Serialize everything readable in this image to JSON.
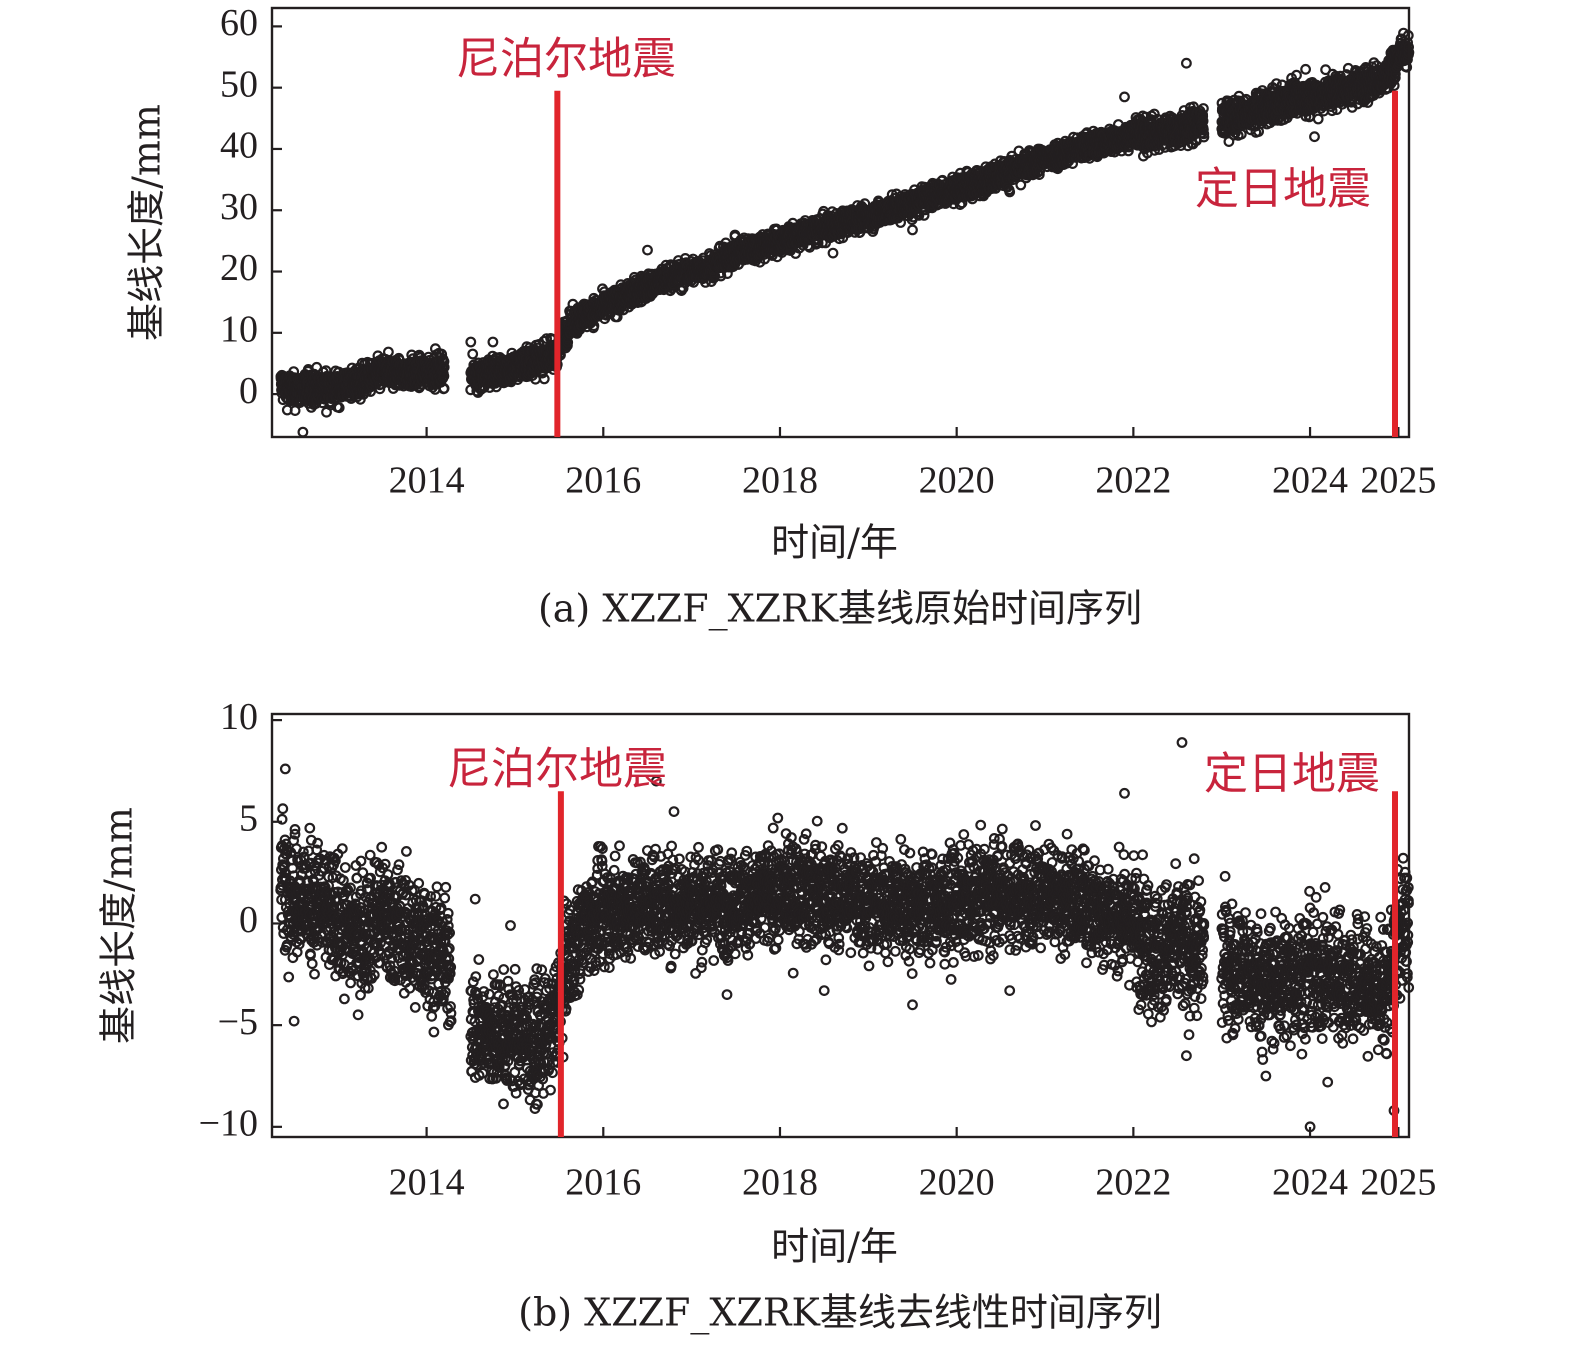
{
  "figure": {
    "background": "#ffffff",
    "ink_color": "#231f20",
    "marker_color": "#231f20",
    "quake_line_color": "#e1252b",
    "quake_label_color": "#c8243c"
  },
  "chart_data": [
    {
      "id": "a",
      "type": "scatter",
      "caption": "(a) XZZF_XZRK基线原始时间序列",
      "xlabel": "时间/年",
      "ylabel": "基线长度/mm",
      "xlim": [
        2012.25,
        2025.12
      ],
      "ylim": [
        -7,
        63
      ],
      "xticks": [
        2014,
        2016,
        2018,
        2020,
        2022,
        2024,
        2025
      ],
      "xtick_labels": [
        "2014",
        "2016",
        "2018",
        "2020",
        "2022",
        "2024",
        "2025"
      ],
      "yticks": [
        0,
        10,
        20,
        30,
        40,
        50,
        60
      ],
      "ytick_labels": [
        "0",
        "10",
        "20",
        "30",
        "40",
        "50",
        "60"
      ],
      "marker": "open-circle",
      "grid": false,
      "events": [
        {
          "label": "尼泊尔地震",
          "x": 2015.48,
          "y_top": 49.5
        },
        {
          "label": "定日地震",
          "x": 2025.02,
          "y_top": 49.5
        }
      ],
      "series": [
        {
          "values": [
            [
              2012.35,
              1.5
            ],
            [
              2012.5,
              0.5
            ],
            [
              2012.75,
              1.0
            ],
            [
              2013.0,
              1.0
            ],
            [
              2013.25,
              2.0
            ],
            [
              2013.5,
              3.5
            ],
            [
              2013.75,
              3.5
            ],
            [
              2014.0,
              3.5
            ],
            [
              2014.2,
              4.0
            ],
            [
              2014.5,
              3.0
            ],
            [
              2014.75,
              3.5
            ],
            [
              2015.0,
              4.5
            ],
            [
              2015.25,
              5.5
            ],
            [
              2015.45,
              6.5
            ],
            [
              2015.6,
              11.0
            ],
            [
              2015.8,
              13.0
            ],
            [
              2016.0,
              14.0
            ],
            [
              2016.25,
              16.0
            ],
            [
              2016.5,
              17.5
            ],
            [
              2016.75,
              19.0
            ],
            [
              2017.0,
              20.0
            ],
            [
              2017.25,
              21.0
            ],
            [
              2017.5,
              23.0
            ],
            [
              2017.75,
              24.0
            ],
            [
              2018.0,
              25.0
            ],
            [
              2018.25,
              26.0
            ],
            [
              2018.5,
              27.0
            ],
            [
              2018.75,
              28.0
            ],
            [
              2019.0,
              29.0
            ],
            [
              2019.25,
              30.0
            ],
            [
              2019.5,
              31.0
            ],
            [
              2019.75,
              32.5
            ],
            [
              2020.0,
              33.5
            ],
            [
              2020.25,
              34.5
            ],
            [
              2020.5,
              36.0
            ],
            [
              2020.75,
              37.0
            ],
            [
              2021.0,
              38.5
            ],
            [
              2021.25,
              39.5
            ],
            [
              2021.5,
              40.5
            ],
            [
              2021.75,
              41.5
            ],
            [
              2022.0,
              42.5
            ],
            [
              2022.25,
              42.5
            ],
            [
              2022.5,
              43.0
            ],
            [
              2022.7,
              44.0
            ],
            [
              2023.1,
              45.0
            ],
            [
              2023.4,
              46.0
            ],
            [
              2023.7,
              48.0
            ],
            [
              2024.0,
              48.5
            ],
            [
              2024.3,
              49.5
            ],
            [
              2024.6,
              50.5
            ],
            [
              2024.85,
              51.5
            ],
            [
              2025.05,
              56.0
            ]
          ],
          "spread": [
            [
              2012.35,
              2013.0,
              2.2
            ],
            [
              2013.0,
              2014.2,
              2.0
            ],
            [
              2014.5,
              2015.6,
              2.0
            ],
            [
              2015.6,
              2022.0,
              1.7
            ],
            [
              2022.0,
              2022.8,
              2.2
            ],
            [
              2023.0,
              2025.12,
              2.3
            ]
          ],
          "gaps": [
            [
              2014.28,
              2014.48
            ],
            [
              2022.82,
              2022.98
            ]
          ],
          "outliers": [
            [
              2012.6,
              -6.2
            ],
            [
              2014.5,
              8.5
            ],
            [
              2014.75,
              8.5
            ],
            [
              2016.5,
              23.5
            ],
            [
              2018.6,
              23.0
            ],
            [
              2019.5,
              26.8
            ],
            [
              2020.6,
              33.0
            ],
            [
              2021.9,
              48.5
            ],
            [
              2022.6,
              54.0
            ],
            [
              2024.05,
              42.0
            ],
            [
              2023.95,
              53.0
            ]
          ]
        }
      ]
    },
    {
      "id": "b",
      "type": "scatter",
      "caption": "(b) XZZF_XZRK基线去线性时间序列",
      "xlabel": "时间/年",
      "ylabel": "基线长度/mm",
      "xlim": [
        2012.25,
        2025.12
      ],
      "ylim": [
        -10.5,
        10.3
      ],
      "xticks": [
        2014,
        2016,
        2018,
        2020,
        2022,
        2024,
        2025
      ],
      "xtick_labels": [
        "2014",
        "2016",
        "2018",
        "2020",
        "2022",
        "2024",
        "2025"
      ],
      "yticks": [
        -10,
        -5,
        0,
        5,
        10
      ],
      "ytick_labels": [
        "−10",
        "−5",
        "0",
        "5",
        "10"
      ],
      "marker": "open-circle",
      "grid": false,
      "events": [
        {
          "label": "尼泊尔地震",
          "x": 2015.52,
          "y_top": 6.5
        },
        {
          "label": "定日地震",
          "x": 2025.02,
          "y_top": 6.5
        }
      ],
      "series": [
        {
          "values": [
            [
              2012.35,
              2.5
            ],
            [
              2012.5,
              1.5
            ],
            [
              2012.75,
              1.0
            ],
            [
              2013.0,
              0.0
            ],
            [
              2013.25,
              -0.5
            ],
            [
              2013.5,
              0.5
            ],
            [
              2013.75,
              -0.5
            ],
            [
              2014.0,
              -1.0
            ],
            [
              2014.25,
              -2.0
            ],
            [
              2014.5,
              -5.0
            ],
            [
              2014.75,
              -5.5
            ],
            [
              2015.0,
              -5.5
            ],
            [
              2015.25,
              -6.0
            ],
            [
              2015.45,
              -5.0
            ],
            [
              2015.6,
              -1.5
            ],
            [
              2015.8,
              0.0
            ],
            [
              2016.0,
              0.5
            ],
            [
              2016.5,
              1.0
            ],
            [
              2017.0,
              1.0
            ],
            [
              2017.5,
              1.0
            ],
            [
              2018.0,
              1.5
            ],
            [
              2018.5,
              1.5
            ],
            [
              2019.0,
              1.0
            ],
            [
              2019.5,
              1.0
            ],
            [
              2020.0,
              1.0
            ],
            [
              2020.5,
              1.5
            ],
            [
              2021.0,
              1.5
            ],
            [
              2021.5,
              1.0
            ],
            [
              2022.0,
              0.0
            ],
            [
              2022.3,
              -1.5
            ],
            [
              2022.5,
              -1.0
            ],
            [
              2022.75,
              -1.5
            ],
            [
              2023.1,
              -2.0
            ],
            [
              2023.5,
              -3.0
            ],
            [
              2023.9,
              -2.5
            ],
            [
              2024.3,
              -2.5
            ],
            [
              2024.6,
              -3.0
            ],
            [
              2024.85,
              -3.5
            ],
            [
              2025.05,
              0.0
            ]
          ],
          "spread": [
            [
              2012.35,
              2014.28,
              2.4
            ],
            [
              2014.5,
              2015.55,
              2.2
            ],
            [
              2015.55,
              2022.0,
              2.0
            ],
            [
              2022.0,
              2022.8,
              2.6
            ],
            [
              2023.0,
              2025.12,
              2.4
            ]
          ],
          "gaps": [
            [
              2014.28,
              2014.48
            ],
            [
              2022.82,
              2022.98
            ]
          ],
          "outliers": [
            [
              2012.4,
              7.6
            ],
            [
              2012.5,
              -4.8
            ],
            [
              2014.55,
              1.2
            ],
            [
              2014.95,
              -0.1
            ],
            [
              2016.6,
              7.0
            ],
            [
              2016.8,
              5.5
            ],
            [
              2017.4,
              -3.5
            ],
            [
              2018.5,
              -3.3
            ],
            [
              2019.5,
              -4.0
            ],
            [
              2020.6,
              -3.3
            ],
            [
              2021.9,
              6.4
            ],
            [
              2022.55,
              8.9
            ],
            [
              2022.6,
              -6.5
            ],
            [
              2023.5,
              -7.5
            ],
            [
              2024.0,
              -10.0
            ],
            [
              2024.2,
              -7.8
            ],
            [
              2024.95,
              -9.2
            ]
          ]
        }
      ]
    }
  ]
}
